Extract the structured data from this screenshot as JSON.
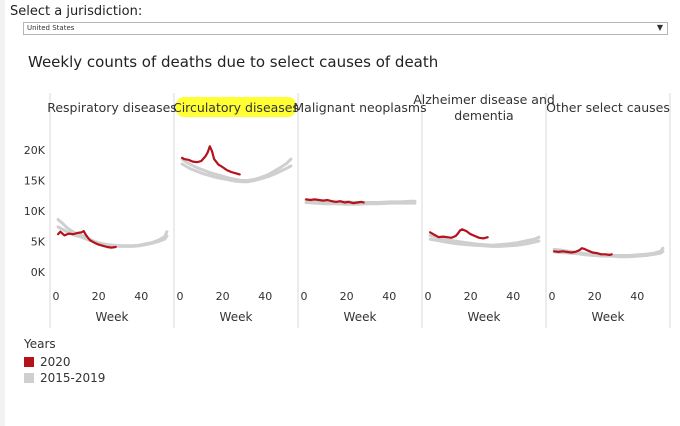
{
  "jurisdiction": {
    "label": "Select a jurisdiction:",
    "selected": "United States",
    "arrow_icon": "▼"
  },
  "colors": {
    "series_2020": "#b5121b",
    "series_hist": "#cfcfcf",
    "highlight": "#ffff33",
    "divider": "#d9d9d9"
  },
  "chart_data": {
    "type": "line",
    "title": "Weekly counts of deaths due to select causes of death",
    "xlabel": "Week",
    "xticks": [
      0,
      20,
      40
    ],
    "xlim": [
      0,
      53
    ],
    "ylim": [
      0,
      22000
    ],
    "yticks": [
      {
        "value": 0,
        "label": "0K"
      },
      {
        "value": 5000,
        "label": "5K"
      },
      {
        "value": 10000,
        "label": "10K"
      },
      {
        "value": 15000,
        "label": "15K"
      },
      {
        "value": 20000,
        "label": "20K"
      }
    ],
    "legend": {
      "title": "Years",
      "items": [
        {
          "label": "2020",
          "color": "#b5121b"
        },
        {
          "label": "2015-2019",
          "color": "#cfcfcf"
        }
      ]
    },
    "panels": [
      {
        "title": [
          "Respiratory diseases"
        ],
        "highlighted": false,
        "series": [
          {
            "name": "2015-2019",
            "x": [
              1,
              3,
              5,
              7,
              9,
              12,
              15,
              18,
              21,
              24,
              27,
              30,
              33,
              36,
              39,
              42,
              45,
              48,
              51,
              52
            ],
            "y": [
              8600,
              8000,
              7300,
              6800,
              6400,
              6000,
              5500,
              5000,
              4700,
              4500,
              4400,
              4300,
              4300,
              4300,
              4400,
              4600,
              4800,
              5200,
              5800,
              6600
            ]
          },
          {
            "name": "2015-2019",
            "x": [
              1,
              3,
              5,
              7,
              9,
              12,
              15,
              18,
              21,
              24,
              27,
              30,
              33,
              36,
              39,
              42,
              45,
              48,
              51,
              52
            ],
            "y": [
              7400,
              7000,
              6600,
              6300,
              6000,
              5700,
              5300,
              4900,
              4600,
              4400,
              4300,
              4200,
              4200,
              4200,
              4300,
              4500,
              4700,
              5000,
              5400,
              5900
            ]
          },
          {
            "name": "2020",
            "x": [
              1,
              2,
              4,
              6,
              8,
              10,
              12,
              13,
              14,
              15,
              16,
              18,
              20,
              22,
              24,
              26,
              28
            ],
            "y": [
              6200,
              6600,
              6000,
              6300,
              6200,
              6400,
              6500,
              6700,
              6100,
              5600,
              5200,
              4800,
              4500,
              4300,
              4100,
              4000,
              4100
            ]
          }
        ]
      },
      {
        "title": [
          "Circulatory diseases"
        ],
        "highlighted": true,
        "series": [
          {
            "name": "2015-2019",
            "x": [
              1,
              3,
              5,
              8,
              11,
              14,
              17,
              20,
              23,
              26,
              29,
              32,
              35,
              38,
              41,
              44,
              47,
              50,
              52
            ],
            "y": [
              18500,
              18000,
              17600,
              17100,
              16700,
              16300,
              16000,
              15700,
              15400,
              15200,
              15000,
              15000,
              15200,
              15500,
              15900,
              16500,
              17100,
              17800,
              18500
            ]
          },
          {
            "name": "2015-2019",
            "x": [
              1,
              3,
              5,
              8,
              11,
              14,
              17,
              20,
              23,
              26,
              29,
              32,
              35,
              38,
              41,
              44,
              47,
              50,
              52
            ],
            "y": [
              17700,
              17300,
              16900,
              16500,
              16100,
              15800,
              15500,
              15300,
              15100,
              14900,
              14800,
              14800,
              15000,
              15300,
              15600,
              16000,
              16500,
              17000,
              17400
            ]
          },
          {
            "name": "2020",
            "x": [
              1,
              2,
              4,
              6,
              8,
              10,
              12,
              13,
              14,
              15,
              16,
              18,
              20,
              22,
              24,
              26,
              28
            ],
            "y": [
              18700,
              18500,
              18400,
              18100,
              18000,
              18200,
              19000,
              19600,
              20600,
              19800,
              18500,
              17600,
              17200,
              16700,
              16400,
              16200,
              16000
            ]
          }
        ]
      },
      {
        "title": [
          "Malignant neoplasms"
        ],
        "highlighted": false,
        "series": [
          {
            "name": "2015-2019",
            "x": [
              1,
              5,
              10,
              15,
              20,
              25,
              30,
              35,
              40,
              45,
              50,
              52
            ],
            "y": [
              11800,
              11700,
              11600,
              11500,
              11500,
              11400,
              11400,
              11400,
              11500,
              11500,
              11600,
              11600
            ]
          },
          {
            "name": "2015-2019",
            "x": [
              1,
              5,
              10,
              15,
              20,
              25,
              30,
              35,
              40,
              45,
              50,
              52
            ],
            "y": [
              11400,
              11300,
              11200,
              11200,
              11100,
              11100,
              11200,
              11200,
              11300,
              11300,
              11300,
              11300
            ]
          },
          {
            "name": "2020",
            "x": [
              1,
              3,
              5,
              7,
              9,
              11,
              13,
              15,
              17,
              19,
              21,
              23,
              25,
              27,
              28
            ],
            "y": [
              11900,
              11800,
              11900,
              11800,
              11700,
              11800,
              11600,
              11500,
              11600,
              11400,
              11500,
              11300,
              11400,
              11500,
              11400
            ]
          }
        ]
      },
      {
        "title": [
          "Alzheimer disease and",
          "dementia"
        ],
        "highlighted": false,
        "series": [
          {
            "name": "2015-2019",
            "x": [
              1,
              4,
              7,
              10,
              14,
              18,
              22,
              26,
              30,
              34,
              38,
              42,
              46,
              50,
              52
            ],
            "y": [
              6000,
              5700,
              5400,
              5200,
              5000,
              4800,
              4600,
              4500,
              4400,
              4500,
              4600,
              4800,
              5100,
              5400,
              5700
            ]
          },
          {
            "name": "2015-2019",
            "x": [
              1,
              4,
              7,
              10,
              14,
              18,
              22,
              26,
              30,
              34,
              38,
              42,
              46,
              50,
              52
            ],
            "y": [
              5400,
              5200,
              5000,
              4800,
              4600,
              4500,
              4400,
              4300,
              4200,
              4200,
              4300,
              4400,
              4600,
              4900,
              5100
            ]
          },
          {
            "name": "2020",
            "x": [
              1,
              3,
              5,
              7,
              9,
              11,
              13,
              14,
              15,
              16,
              18,
              20,
              22,
              24,
              26,
              28
            ],
            "y": [
              6500,
              6100,
              5700,
              5800,
              5700,
              5600,
              5900,
              6300,
              6800,
              7000,
              6700,
              6200,
              5900,
              5600,
              5500,
              5700
            ]
          }
        ]
      },
      {
        "title": [
          "Other select causes"
        ],
        "highlighted": false,
        "series": [
          {
            "name": "2015-2019",
            "x": [
              1,
              4,
              8,
              12,
              16,
              20,
              24,
              28,
              32,
              36,
              40,
              44,
              48,
              51,
              52
            ],
            "y": [
              3700,
              3600,
              3400,
              3200,
              3000,
              2900,
              2800,
              2700,
              2700,
              2700,
              2800,
              2900,
              3100,
              3400,
              3900
            ]
          },
          {
            "name": "2015-2019",
            "x": [
              1,
              4,
              8,
              12,
              16,
              20,
              24,
              28,
              32,
              36,
              40,
              44,
              48,
              51,
              52
            ],
            "y": [
              3300,
              3200,
              3100,
              3000,
              2800,
              2700,
              2600,
              2600,
              2500,
              2500,
              2600,
              2700,
              2900,
              3100,
              3400
            ]
          },
          {
            "name": "2020",
            "x": [
              1,
              3,
              5,
              7,
              9,
              11,
              13,
              14,
              15,
              17,
              19,
              21,
              23,
              25,
              27,
              28
            ],
            "y": [
              3400,
              3300,
              3400,
              3300,
              3200,
              3300,
              3600,
              3900,
              3800,
              3500,
              3200,
              3100,
              2900,
              2900,
              2800,
              2900
            ]
          }
        ]
      }
    ]
  }
}
